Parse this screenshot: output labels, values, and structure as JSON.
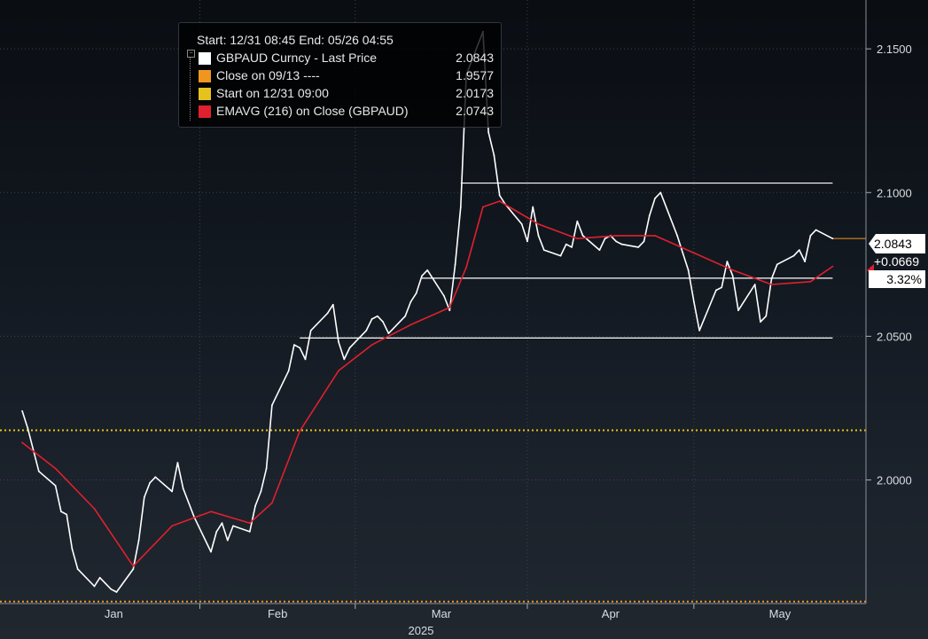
{
  "legend": {
    "header": "Start: 12/31 08:45 End: 05/26 04:55",
    "items": [
      {
        "label": "GBPAUD Curncy - Last Price",
        "value": "2.0843",
        "color": "#ffffff"
      },
      {
        "label": "Close on 09/13 ----",
        "value": "1.9577",
        "color": "#f0961e"
      },
      {
        "label": "Start on 12/31 09:00",
        "value": "2.0173",
        "color": "#e6c21e"
      },
      {
        "label": "EMAVG (216)  on Close (GBPAUD)",
        "value": "2.0743",
        "color": "#e0202e"
      }
    ]
  },
  "tags": {
    "last_price": "2.0843",
    "change": "+0.0669",
    "change_pct": "3.32%"
  },
  "chart_data": {
    "type": "line",
    "title": "",
    "year_label": "2025",
    "x_labels": [
      "Jan",
      "Feb",
      "Mar",
      "Apr",
      "May"
    ],
    "y_ticks": [
      "2.0000",
      "2.0500",
      "2.1000",
      "2.1500"
    ],
    "ylim": [
      1.957,
      2.167
    ],
    "grid": true,
    "legend_position": "top-left",
    "reference_lines": [
      {
        "name": "Close on 09/13",
        "value": 1.9577,
        "color": "#f0961e",
        "style": "dotted"
      },
      {
        "name": "Start on 12/31 09:00",
        "value": 2.0173,
        "color": "#e6c21e",
        "style": "dotted"
      }
    ],
    "horizontal_levels": [
      {
        "value": 2.1033,
        "from": "2025-03-20",
        "to": "2025-05-26"
      },
      {
        "value": 2.0702,
        "from": "2025-03-13",
        "to": "2025-05-26"
      },
      {
        "value": 2.0494,
        "from": "2025-02-19",
        "to": "2025-05-26"
      }
    ],
    "series": [
      {
        "name": "GBPAUD Curncy - Last Price",
        "color": "#ffffff",
        "x": [
          "2024-12-31",
          "2025-01-01",
          "2025-01-03",
          "2025-01-06",
          "2025-01-07",
          "2025-01-08",
          "2025-01-09",
          "2025-01-10",
          "2025-01-13",
          "2025-01-14",
          "2025-01-15",
          "2025-01-16",
          "2025-01-17",
          "2025-01-20",
          "2025-01-21",
          "2025-01-22",
          "2025-01-23",
          "2025-01-24",
          "2025-01-27",
          "2025-01-28",
          "2025-01-29",
          "2025-01-31",
          "2025-02-03",
          "2025-02-04",
          "2025-02-05",
          "2025-02-06",
          "2025-02-07",
          "2025-02-10",
          "2025-02-11",
          "2025-02-12",
          "2025-02-13",
          "2025-02-14",
          "2025-02-17",
          "2025-02-18",
          "2025-02-19",
          "2025-02-20",
          "2025-02-21",
          "2025-02-24",
          "2025-02-25",
          "2025-02-26",
          "2025-02-27",
          "2025-02-28",
          "2025-03-03",
          "2025-03-04",
          "2025-03-05",
          "2025-03-06",
          "2025-03-07",
          "2025-03-10",
          "2025-03-11",
          "2025-03-12",
          "2025-03-13",
          "2025-03-14",
          "2025-03-17",
          "2025-03-18",
          "2025-03-19",
          "2025-03-20",
          "2025-03-21",
          "2025-03-24",
          "2025-03-25",
          "2025-03-26",
          "2025-03-27",
          "2025-03-28",
          "2025-03-31",
          "2025-04-01",
          "2025-04-02",
          "2025-04-03",
          "2025-04-04",
          "2025-04-07",
          "2025-04-08",
          "2025-04-09",
          "2025-04-10",
          "2025-04-11",
          "2025-04-14",
          "2025-04-15",
          "2025-04-16",
          "2025-04-17",
          "2025-04-18",
          "2025-04-21",
          "2025-04-22",
          "2025-04-23",
          "2025-04-24",
          "2025-04-25",
          "2025-04-28",
          "2025-04-29",
          "2025-04-30",
          "2025-05-01",
          "2025-05-02",
          "2025-05-05",
          "2025-05-06",
          "2025-05-07",
          "2025-05-08",
          "2025-05-09",
          "2025-05-12",
          "2025-05-13",
          "2025-05-14",
          "2025-05-15",
          "2025-05-16",
          "2025-05-19",
          "2025-05-20",
          "2025-05-21",
          "2025-05-22",
          "2025-05-23",
          "2025-05-26"
        ],
        "values": [
          2.024,
          2.018,
          2.003,
          1.998,
          1.989,
          1.988,
          1.976,
          1.969,
          1.963,
          1.966,
          1.964,
          1.962,
          1.961,
          1.969,
          1.979,
          1.994,
          1.999,
          2.001,
          1.996,
          2.006,
          1.997,
          1.987,
          1.975,
          1.982,
          1.985,
          1.979,
          1.984,
          1.982,
          1.991,
          1.996,
          2.004,
          2.026,
          2.038,
          2.047,
          2.046,
          2.042,
          2.052,
          2.058,
          2.061,
          2.048,
          2.042,
          2.046,
          2.052,
          2.056,
          2.057,
          2.055,
          2.051,
          2.057,
          2.062,
          2.065,
          2.071,
          2.073,
          2.064,
          2.059,
          2.075,
          2.095,
          2.141,
          2.156,
          2.121,
          2.113,
          2.099,
          2.096,
          2.089,
          2.083,
          2.095,
          2.085,
          2.08,
          2.078,
          2.082,
          2.081,
          2.09,
          2.085,
          2.08,
          2.084,
          2.085,
          2.083,
          2.082,
          2.081,
          2.083,
          2.092,
          2.098,
          2.1,
          2.085,
          2.079,
          2.073,
          2.062,
          2.052,
          2.066,
          2.067,
          2.076,
          2.071,
          2.059,
          2.068,
          2.055,
          2.057,
          2.07,
          2.075,
          2.078,
          2.08,
          2.076,
          2.085,
          2.087,
          2.084
        ]
      },
      {
        "name": "EMAVG (216)  on Close (GBPAUD)",
        "color": "#e0202e",
        "x": [
          "2024-12-31",
          "2025-01-06",
          "2025-01-13",
          "2025-01-20",
          "2025-01-27",
          "2025-02-03",
          "2025-02-10",
          "2025-02-14",
          "2025-02-19",
          "2025-02-26",
          "2025-03-04",
          "2025-03-11",
          "2025-03-18",
          "2025-03-21",
          "2025-03-24",
          "2025-03-27",
          "2025-04-03",
          "2025-04-10",
          "2025-04-17",
          "2025-04-24",
          "2025-05-01",
          "2025-05-08",
          "2025-05-15",
          "2025-05-22",
          "2025-05-26"
        ],
        "values": [
          2.013,
          2.004,
          1.99,
          1.97,
          1.984,
          1.989,
          1.985,
          1.992,
          2.017,
          2.038,
          2.047,
          2.054,
          2.06,
          2.074,
          2.095,
          2.097,
          2.089,
          2.084,
          2.085,
          2.085,
          2.079,
          2.073,
          2.068,
          2.069,
          2.0743
        ]
      }
    ]
  }
}
